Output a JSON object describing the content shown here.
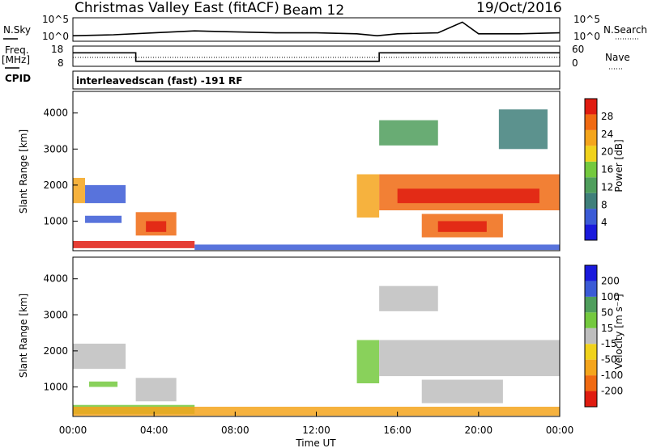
{
  "header": {
    "site": "Christmas Valley East (fitACF)",
    "beam": "Beam 12",
    "date": "19/Oct/2016"
  },
  "panels": {
    "nsky_label": "N.Sky",
    "nsearch_label": "N.Search",
    "freq_label": "Freq.",
    "freq_unit": "[MHz]",
    "nave_label": "Nave",
    "cpid_label": "CPID",
    "cpid_value": "interleavedscan (fast) -191 RF"
  },
  "colors": {
    "power_scale": [
      "#1a1adc",
      "#3b5bd6",
      "#3f7f7a",
      "#4f9e5c",
      "#74c93e",
      "#f0d21c",
      "#f4a51c",
      "#f06a12",
      "#e01c10"
    ],
    "velocity_scale": [
      "#e01c10",
      "#f06a12",
      "#f4a51c",
      "#f0d21c",
      "#bebebe",
      "#74c93e",
      "#4f9e5c",
      "#3b5bd6",
      "#1a1adc"
    ],
    "ground_scatter": "#bebebe"
  },
  "chart_data": [
    {
      "type": "line",
      "name": "noise",
      "left_ticks": [
        "10^5",
        "10^0"
      ],
      "right_ticks": [
        "10^5",
        "10^0"
      ],
      "x": [
        0,
        2,
        4,
        6,
        8,
        10,
        12,
        14,
        15,
        16,
        18,
        19.2,
        20,
        22,
        24
      ],
      "y": [
        0.2,
        0.25,
        0.35,
        0.45,
        0.4,
        0.35,
        0.35,
        0.3,
        0.2,
        0.3,
        0.35,
        0.9,
        0.3,
        0.3,
        0.35
      ]
    },
    {
      "type": "line",
      "name": "frequency",
      "left_ticks": [
        "18",
        "8"
      ],
      "right_ticks": [
        "60",
        "0"
      ],
      "ylim": [
        8,
        18
      ],
      "segments": [
        {
          "x": [
            0,
            3.1
          ],
          "y": 15
        },
        {
          "x": [
            3.1,
            15.1
          ],
          "y": 10
        },
        {
          "x": [
            15.1,
            24
          ],
          "y": 15
        }
      ]
    },
    {
      "type": "heatmap",
      "name": "power",
      "ylabel": "Slant Range [km]",
      "yticks": [
        "4000",
        "3000",
        "2000",
        "1000"
      ],
      "ylim": [
        180,
        4600
      ],
      "colorbar_label": "Power [dB]",
      "colorbar_ticks": [
        "28",
        "24",
        "20",
        "16",
        "12",
        "8",
        "4"
      ],
      "regions": [
        {
          "x0": 0,
          "x1": 0.6,
          "y0": 1500,
          "y1": 2200,
          "level": 6
        },
        {
          "x0": 0.6,
          "x1": 2.6,
          "y0": 1500,
          "y1": 2000,
          "level": 1
        },
        {
          "x0": 0.6,
          "x1": 2.4,
          "y0": 950,
          "y1": 1150,
          "level": 1
        },
        {
          "x0": 3.1,
          "x1": 5.1,
          "y0": 600,
          "y1": 1250,
          "level": 7
        },
        {
          "x0": 3.6,
          "x1": 4.6,
          "y0": 700,
          "y1": 1000,
          "level": 8
        },
        {
          "x0": 0,
          "x1": 6,
          "y0": 250,
          "y1": 450,
          "level": 8
        },
        {
          "x0": 6,
          "x1": 24,
          "y0": 200,
          "y1": 350,
          "level": 1
        },
        {
          "x0": 14,
          "x1": 15.1,
          "y0": 1100,
          "y1": 2300,
          "level": 6
        },
        {
          "x0": 15.1,
          "x1": 24,
          "y0": 1300,
          "y1": 2300,
          "level": 7
        },
        {
          "x0": 16,
          "x1": 23,
          "y0": 1500,
          "y1": 1900,
          "level": 8
        },
        {
          "x0": 17.2,
          "x1": 21.2,
          "y0": 550,
          "y1": 1200,
          "level": 7
        },
        {
          "x0": 18,
          "x1": 20.4,
          "y0": 700,
          "y1": 1000,
          "level": 8
        },
        {
          "x0": 15.1,
          "x1": 18,
          "y0": 3100,
          "y1": 3800,
          "level": 3
        },
        {
          "x0": 21,
          "x1": 23.4,
          "y0": 3000,
          "y1": 4100,
          "level": 2
        }
      ]
    },
    {
      "type": "heatmap",
      "name": "velocity",
      "ylabel": "Slant Range [km]",
      "yticks": [
        "4000",
        "3000",
        "2000",
        "1000"
      ],
      "ylim": [
        180,
        4600
      ],
      "xlabel": "Time UT",
      "xticks": [
        "00:00",
        "04:00",
        "08:00",
        "12:00",
        "16:00",
        "20:00",
        "00:00"
      ],
      "xlim": [
        0,
        24
      ],
      "colorbar_label": "Velocity [m s⁻¹]",
      "colorbar_ticks": [
        "200",
        "100",
        "50",
        "15",
        "-15",
        "-50",
        "-100",
        "-200"
      ],
      "regions": [
        {
          "x0": 0,
          "x1": 2.6,
          "y0": 1500,
          "y1": 2200,
          "level": 4
        },
        {
          "x0": 0.8,
          "x1": 2.2,
          "y0": 1000,
          "y1": 1150,
          "level": 5
        },
        {
          "x0": 3.1,
          "x1": 5.1,
          "y0": 600,
          "y1": 1250,
          "level": 4
        },
        {
          "x0": 0,
          "x1": 6,
          "y0": 250,
          "y1": 500,
          "level": 5
        },
        {
          "x0": 0,
          "x1": 24,
          "y0": 200,
          "y1": 450,
          "level": 2
        },
        {
          "x0": 14,
          "x1": 15.1,
          "y0": 1100,
          "y1": 2300,
          "level": 5
        },
        {
          "x0": 15.1,
          "x1": 24,
          "y0": 1300,
          "y1": 2300,
          "level": 4
        },
        {
          "x0": 17.2,
          "x1": 21.2,
          "y0": 550,
          "y1": 1200,
          "level": 4
        },
        {
          "x0": 15.1,
          "x1": 18,
          "y0": 3100,
          "y1": 3800,
          "level": 4
        }
      ]
    }
  ]
}
